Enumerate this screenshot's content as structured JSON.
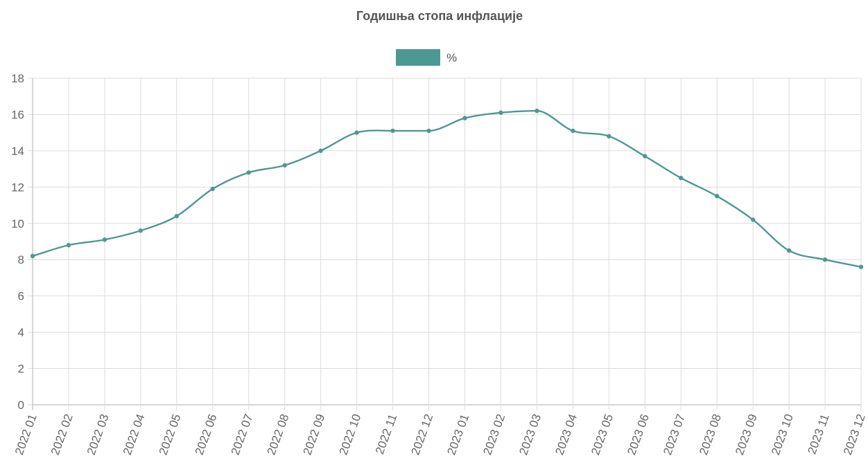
{
  "colors": {
    "series": "#4e9894",
    "grid": "#dcdcdc",
    "text": "#555555"
  },
  "chart_data": {
    "type": "line",
    "title": "Годишња стопа инфлације",
    "xlabel": "",
    "ylabel": "",
    "ylim": [
      0,
      18
    ],
    "yticks": [
      0,
      2,
      4,
      6,
      8,
      10,
      12,
      14,
      16,
      18
    ],
    "grid": true,
    "legend_position": "top-center",
    "categories": [
      "2022 01",
      "2022 02",
      "2022 03",
      "2022 04",
      "2022 05",
      "2022 06",
      "2022 07",
      "2022 08",
      "2022 09",
      "2022 10",
      "2022 11",
      "2022 12",
      "2023 01",
      "2023 02",
      "2023 03",
      "2023 04",
      "2023 05",
      "2023 06",
      "2023 07",
      "2023 08",
      "2023 09",
      "2023 10",
      "2023 11",
      "2023 12"
    ],
    "series": [
      {
        "name": "%",
        "color": "#4e9894",
        "values": [
          8.2,
          8.8,
          9.1,
          9.6,
          10.4,
          11.9,
          12.8,
          13.2,
          14.0,
          15.0,
          15.1,
          15.1,
          15.8,
          16.1,
          16.2,
          15.1,
          14.8,
          13.7,
          12.5,
          11.5,
          10.2,
          8.5,
          8.0,
          7.6
        ]
      }
    ]
  }
}
